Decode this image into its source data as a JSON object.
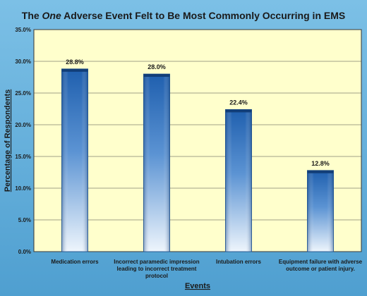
{
  "chart_data": {
    "type": "bar",
    "title_parts": [
      "The ",
      "One",
      " Adverse Event  Felt to Be Most Commonly Occurring in EMS"
    ],
    "xlabel": "Events",
    "ylabel": "Percentage of Respondents",
    "ylim": [
      0,
      35
    ],
    "yticks": [
      "0.0%",
      "5.0%",
      "10.0%",
      "15.0%",
      "20.0%",
      "25.0%",
      "30.0%",
      "35.0%"
    ],
    "categories": [
      [
        "Medication errors"
      ],
      [
        "Incorrect paramedic impression",
        "leading to incorrect treatment",
        "protocol"
      ],
      [
        "Intubation errors"
      ],
      [
        "Equipment failure with adverse",
        "outcome or patient injury."
      ]
    ],
    "values": [
      28.8,
      28.0,
      22.4,
      12.8
    ],
    "value_labels": [
      "28.8%",
      "28.0%",
      "22.4%",
      "12.8%"
    ],
    "grid": true,
    "colors": {
      "plot_bg": "#ffffcc",
      "bar_top": "#1f5fae",
      "bar_mid": "#5b93d3",
      "bar_bottom": "#eef5fc",
      "page_bg": "#5aa8d6"
    }
  }
}
